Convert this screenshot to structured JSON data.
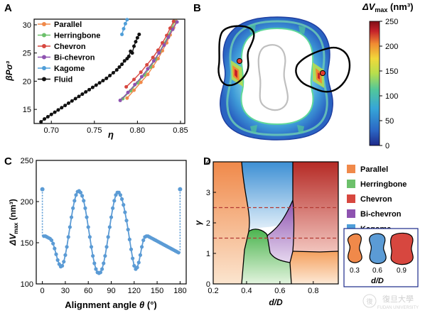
{
  "panels": {
    "a": "A",
    "b": "B",
    "c": "C",
    "d": "D"
  },
  "colors": {
    "parallel": "#f0894a",
    "herringbone": "#6cc06b",
    "chevron": "#d7473f",
    "bichevron": "#8e53b0",
    "kagome": "#4f9ed8",
    "fluid": "#111111",
    "c_line": "#5b9bd5"
  },
  "chart_data": [
    {
      "type": "line",
      "panel": "A",
      "xlabel": "η",
      "ylabel": "βPσ³",
      "xlim": [
        0.68,
        0.855
      ],
      "ylim": [
        12.5,
        31
      ],
      "xticks": [
        "0.70",
        "0.75",
        "0.80",
        "0.85"
      ],
      "yticks": [
        "15",
        "20",
        "25",
        "30"
      ],
      "legend_position": "top-left",
      "series": [
        {
          "name": "Parallel",
          "color": "#f0894a",
          "x": [
            0.788,
            0.796,
            0.804,
            0.812,
            0.818,
            0.824,
            0.829,
            0.834,
            0.838,
            0.842,
            0.845
          ],
          "y": [
            17.0,
            18.4,
            19.8,
            21.2,
            22.6,
            24.0,
            25.4,
            26.8,
            28.2,
            29.5,
            30.6
          ]
        },
        {
          "name": "Herringbone",
          "color": "#6cc06b",
          "x": [
            0.783,
            0.792,
            0.8,
            0.808,
            0.815,
            0.821,
            0.826,
            0.831,
            0.836,
            0.84,
            0.843
          ],
          "y": [
            16.9,
            18.3,
            19.7,
            21.1,
            22.5,
            23.9,
            25.3,
            26.7,
            28.1,
            29.4,
            30.6
          ]
        },
        {
          "name": "Chevron",
          "color": "#d7473f",
          "x": [
            0.787,
            0.796,
            0.804,
            0.811,
            0.818,
            0.824,
            0.829,
            0.834,
            0.838,
            0.842
          ],
          "y": [
            19.0,
            20.3,
            21.6,
            22.9,
            24.2,
            25.5,
            26.8,
            28.1,
            29.4,
            30.6
          ]
        },
        {
          "name": "Bi-chevron",
          "color": "#8e53b0",
          "x": [
            0.78,
            0.789,
            0.797,
            0.805,
            0.812,
            0.819,
            0.825,
            0.831,
            0.836,
            0.841,
            0.846
          ],
          "y": [
            16.6,
            18.0,
            19.4,
            20.8,
            22.2,
            23.6,
            25.0,
            26.4,
            27.8,
            29.2,
            30.5
          ]
        },
        {
          "name": "Kagome",
          "color": "#4f9ed8",
          "x": [
            0.782,
            0.784,
            0.786,
            0.788
          ],
          "y": [
            28.3,
            29.3,
            30.2,
            30.9
          ]
        },
        {
          "name": "Fluid",
          "color": "#111111",
          "x": [
            0.688,
            0.692,
            0.696,
            0.7,
            0.704,
            0.708,
            0.712,
            0.716,
            0.72,
            0.724,
            0.728,
            0.732,
            0.736,
            0.74,
            0.744,
            0.748,
            0.752,
            0.756,
            0.76,
            0.764,
            0.768,
            0.772,
            0.776,
            0.779,
            0.782,
            0.785,
            0.788,
            0.79,
            0.792,
            0.794,
            0.796,
            0.798,
            0.8,
            0.802
          ],
          "y": [
            12.8,
            13.3,
            13.7,
            14.1,
            14.5,
            14.9,
            15.3,
            15.7,
            16.1,
            16.5,
            16.9,
            17.3,
            17.7,
            18.1,
            18.5,
            18.9,
            19.3,
            19.7,
            20.1,
            20.5,
            21.0,
            21.5,
            22.0,
            22.5,
            23.0,
            23.6,
            24.0,
            24.4,
            25.3,
            25.0,
            26.2,
            27.0,
            27.7,
            28.3
          ]
        }
      ]
    },
    {
      "type": "heatmap",
      "panel": "B",
      "colorbar_label": "ΔV_max (nm³)",
      "colorbar_ticks": [
        "0",
        "50",
        "100",
        "150",
        "200",
        "250"
      ],
      "colorbar_range": [
        0,
        250
      ],
      "colormap": [
        "#1f2a8a",
        "#2b66c4",
        "#36a6d8",
        "#52c79a",
        "#b7de4d",
        "#f1d83a",
        "#f08a32",
        "#c6222a",
        "#7f0f16"
      ]
    },
    {
      "type": "line",
      "panel": "C",
      "xlabel_prefix": "Alignment angle ",
      "xlabel_symbol": "θ",
      "xlabel_unit": " (°)",
      "ylabel": "ΔV_max (nm³)",
      "xlim": [
        -8,
        188
      ],
      "ylim": [
        100,
        250
      ],
      "xticks": [
        "0",
        "30",
        "60",
        "90",
        "120",
        "150",
        "180"
      ],
      "yticks": [
        "100",
        "150",
        "200",
        "250"
      ],
      "x": [
        2,
        4,
        6,
        8,
        10,
        12,
        14,
        16,
        18,
        20,
        22,
        24,
        26,
        28,
        30,
        32,
        34,
        36,
        38,
        40,
        42,
        44,
        46,
        48,
        50,
        52,
        54,
        56,
        58,
        60,
        62,
        64,
        66,
        68,
        70,
        72,
        74,
        76,
        78,
        80,
        82,
        84,
        86,
        88,
        90,
        92,
        94,
        96,
        98,
        100,
        102,
        104,
        106,
        108,
        110,
        112,
        114,
        116,
        118,
        120,
        122,
        124,
        126,
        128,
        130,
        132,
        134,
        136,
        138,
        140,
        142,
        144,
        146,
        148,
        150,
        152,
        154,
        156,
        158,
        160,
        162,
        164,
        166,
        168,
        170,
        172,
        174,
        176,
        178
      ],
      "y": [
        158,
        158,
        157,
        156,
        155,
        153,
        149,
        143,
        136,
        129,
        124,
        121,
        122,
        127,
        135,
        145,
        157,
        169,
        181,
        192,
        201,
        208,
        212,
        213,
        211,
        207,
        201,
        192,
        181,
        169,
        157,
        145,
        134,
        125,
        118,
        114,
        113,
        114,
        118,
        125,
        134,
        145,
        157,
        169,
        181,
        192,
        201,
        208,
        211,
        211,
        208,
        203,
        196,
        187,
        177,
        166,
        154,
        142,
        131,
        122,
        118,
        120,
        126,
        135,
        145,
        153,
        157,
        158,
        158,
        157,
        156,
        155,
        154,
        153,
        152,
        151,
        150,
        149,
        148,
        147,
        146,
        145,
        144,
        143,
        142,
        141,
        140,
        139,
        138
      ],
      "endpoints": [
        {
          "x": 0,
          "y": 215
        },
        {
          "x": 180,
          "y": 215
        }
      ]
    },
    {
      "type": "area",
      "panel": "D",
      "xlabel": "d/D",
      "ylabel": "γ",
      "xlim": [
        0.2,
        0.95
      ],
      "ylim": [
        0,
        4
      ],
      "xticks": [
        "0.2",
        "0.4",
        "0.6",
        "0.8"
      ],
      "yticks": [
        "0",
        "1",
        "2",
        "3",
        "4"
      ],
      "dashed_levels": [
        2.5,
        1.5
      ],
      "legend": [
        "Parallel",
        "Herringbone",
        "Chevron",
        "Bi-chevron",
        "Kagome"
      ],
      "inset": {
        "labels": [
          "0.3",
          "0.6",
          "0.9"
        ],
        "title": "d/D"
      }
    }
  ],
  "watermark": {
    "text": "復旦大學",
    "sub": "FUDAN UNIVERSITY"
  }
}
